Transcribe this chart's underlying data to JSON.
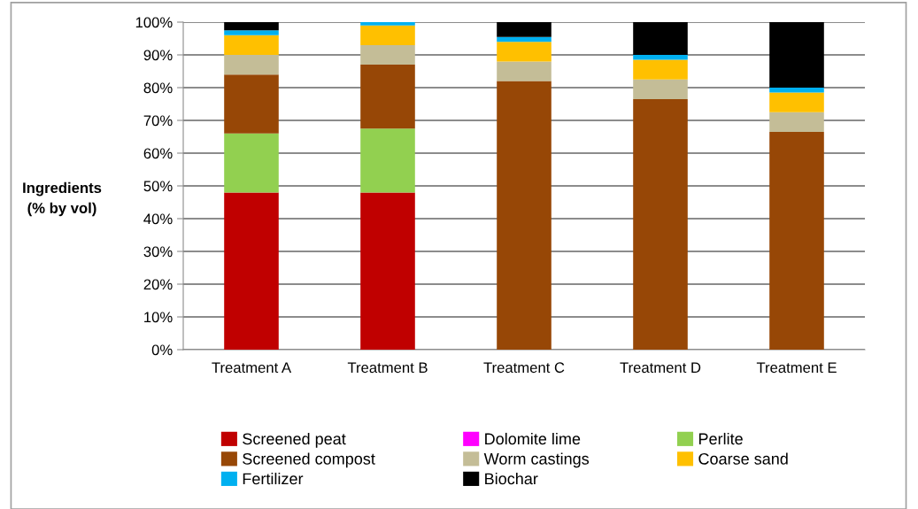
{
  "chart_data": {
    "type": "bar",
    "stacked": true,
    "ylabel": "Ingredients\n(% by vol)",
    "categories": [
      "Treatment A",
      "Treatment B",
      "Treatment C",
      "Treatment D",
      "Treatment E"
    ],
    "series": [
      {
        "name": "Screened peat",
        "color": "#c00000",
        "values": [
          48,
          48,
          0,
          0,
          0
        ]
      },
      {
        "name": "Dolomite lime",
        "color": "#ff00ff",
        "values": [
          0,
          0,
          0,
          0,
          0
        ]
      },
      {
        "name": "Perlite",
        "color": "#92d050",
        "values": [
          18,
          19.5,
          0,
          0,
          0
        ]
      },
      {
        "name": "Screened compost",
        "color": "#974706",
        "values": [
          18,
          19.5,
          82,
          76.5,
          66.5
        ]
      },
      {
        "name": "Worm castings",
        "color": "#c4bd97",
        "values": [
          6,
          6,
          6,
          6,
          6
        ]
      },
      {
        "name": "Coarse sand",
        "color": "#ffc000",
        "values": [
          6,
          6,
          6,
          6,
          6
        ]
      },
      {
        "name": "Fertilizer",
        "color": "#00b0f0",
        "values": [
          1.5,
          1,
          1.5,
          1.5,
          1.5
        ]
      },
      {
        "name": "Biochar",
        "color": "#000000",
        "values": [
          2.5,
          0,
          4.5,
          10,
          20
        ]
      }
    ],
    "ylim": [
      0,
      100
    ],
    "yticks": [
      {
        "value": 0,
        "label": "0%"
      },
      {
        "value": 10,
        "label": "10%"
      },
      {
        "value": 20,
        "label": "20%"
      },
      {
        "value": 30,
        "label": "30%"
      },
      {
        "value": 40,
        "label": "40%"
      },
      {
        "value": 50,
        "label": "50%"
      },
      {
        "value": 60,
        "label": "60%"
      },
      {
        "value": 70,
        "label": "70%"
      },
      {
        "value": 80,
        "label": "80%"
      },
      {
        "value": 90,
        "label": "90%"
      },
      {
        "value": 100,
        "label": "100%"
      }
    ],
    "grid": "y",
    "legend": "bottom"
  }
}
